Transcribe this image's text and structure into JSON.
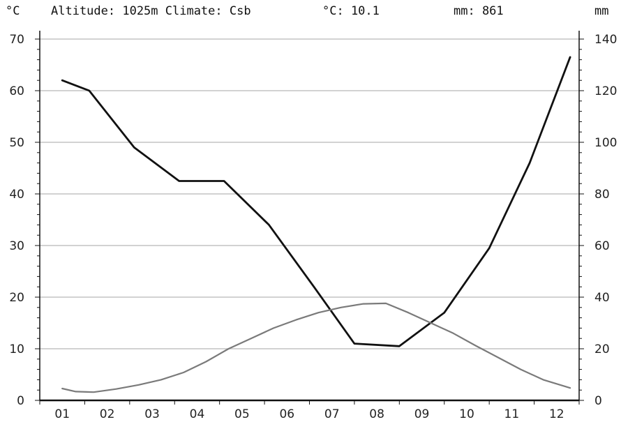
{
  "header": {
    "left_unit": "°C",
    "info": "Altitude: 1025m Climate: Csb",
    "temp_label": "°C: 10.1",
    "precip_label": "mm: 861",
    "right_unit": "mm"
  },
  "chart_data": {
    "type": "line",
    "categories": [
      "01",
      "02",
      "03",
      "04",
      "05",
      "06",
      "07",
      "08",
      "09",
      "10",
      "11",
      "12"
    ],
    "left_axis": {
      "unit": "°C",
      "ylim": [
        0,
        70
      ],
      "ticks": [
        "0",
        "10",
        "20",
        "30",
        "40",
        "50",
        "60",
        "70"
      ]
    },
    "right_axis": {
      "unit": "mm",
      "ylim": [
        0,
        140
      ],
      "ticks": [
        "0",
        "20",
        "40",
        "60",
        "80",
        "100",
        "120",
        "140"
      ]
    },
    "series": [
      {
        "key": "precipitation",
        "axis": "right",
        "color": "#111111",
        "x": [
          0.0,
          0.6,
          1.6,
          2.6,
          3.6,
          4.6,
          5.6,
          6.5,
          7.5,
          8.5,
          9.5,
          10.4,
          11.3
        ],
        "values": [
          124,
          120,
          98,
          85,
          85,
          68,
          44,
          22,
          21,
          34,
          59,
          92,
          133
        ]
      },
      {
        "key": "temperature",
        "axis": "left",
        "color": "#7a7a7a",
        "x": [
          0.0,
          0.3,
          0.7,
          1.2,
          1.7,
          2.2,
          2.7,
          3.2,
          3.7,
          4.2,
          4.7,
          5.2,
          5.7,
          6.2,
          6.7,
          7.2,
          7.7,
          8.2,
          8.7,
          9.2,
          9.7,
          10.2,
          10.7,
          11.3
        ],
        "values": [
          2.3,
          1.7,
          1.6,
          2.2,
          3.0,
          4.0,
          5.4,
          7.5,
          10.0,
          12.0,
          14.0,
          15.6,
          17.0,
          18.0,
          18.7,
          18.8,
          17.0,
          15.0,
          13.0,
          10.6,
          8.3,
          6.0,
          4.0,
          2.4
        ]
      }
    ],
    "grid": true
  }
}
